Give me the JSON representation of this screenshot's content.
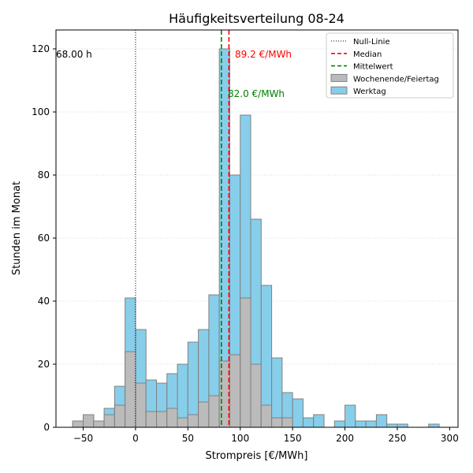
{
  "chart_data": {
    "type": "bar",
    "title": "Häufigkeitsverteilung 08-24",
    "xlabel": "Strompreis [€/MWh]",
    "ylabel": "Stunden im Monat",
    "xlim": [
      -76,
      308
    ],
    "ylim": [
      0,
      126
    ],
    "xticks": [
      -50,
      0,
      50,
      100,
      150,
      200,
      250,
      300
    ],
    "yticks": [
      0,
      20,
      40,
      60,
      80,
      100,
      120
    ],
    "grid": "horizontal dotted",
    "legend_position": "top-right",
    "bin_width": 10,
    "bin_starts": [
      -60,
      -50,
      -40,
      -30,
      -20,
      -10,
      0,
      10,
      20,
      30,
      40,
      50,
      60,
      70,
      80,
      90,
      100,
      110,
      120,
      130,
      140,
      150,
      160,
      170,
      180,
      190,
      200,
      210,
      220,
      230,
      240,
      250,
      260,
      270,
      280
    ],
    "series": [
      {
        "name": "Wochenende/Feiertag",
        "color": "#bbbbbb",
        "values": [
          2,
          4,
          2,
          4,
          7,
          24,
          14,
          5,
          5,
          6,
          3,
          4,
          8,
          10,
          21,
          23,
          41,
          20,
          7,
          3,
          3,
          0,
          0,
          0,
          0,
          0,
          0,
          0,
          0,
          0,
          0,
          0,
          0,
          0,
          0
        ]
      },
      {
        "name": "Werktag",
        "color": "#87ceeb",
        "stacked_total": [
          2,
          4,
          2,
          6,
          13,
          41,
          31,
          15,
          14,
          17,
          20,
          27,
          31,
          42,
          120,
          80,
          99,
          66,
          45,
          22,
          11,
          9,
          3,
          4,
          0,
          2,
          7,
          2,
          2,
          4,
          1,
          1,
          0,
          0,
          1
        ]
      }
    ],
    "reference_lines": [
      {
        "name": "Null-Linie",
        "x": 0,
        "color": "#000000",
        "style": "dotted"
      },
      {
        "name": "Median",
        "x": 89.2,
        "color": "#ff0000",
        "style": "dashed"
      },
      {
        "name": "Mittelwert",
        "x": 82.0,
        "color": "#008000",
        "style": "dashed"
      }
    ],
    "annotations": [
      {
        "text": "68.00 h",
        "color": "#000000"
      },
      {
        "text": "89.2 €/MWh",
        "color": "#ff0000"
      },
      {
        "text": "82.0 €/MWh",
        "color": "#008000"
      }
    ]
  }
}
